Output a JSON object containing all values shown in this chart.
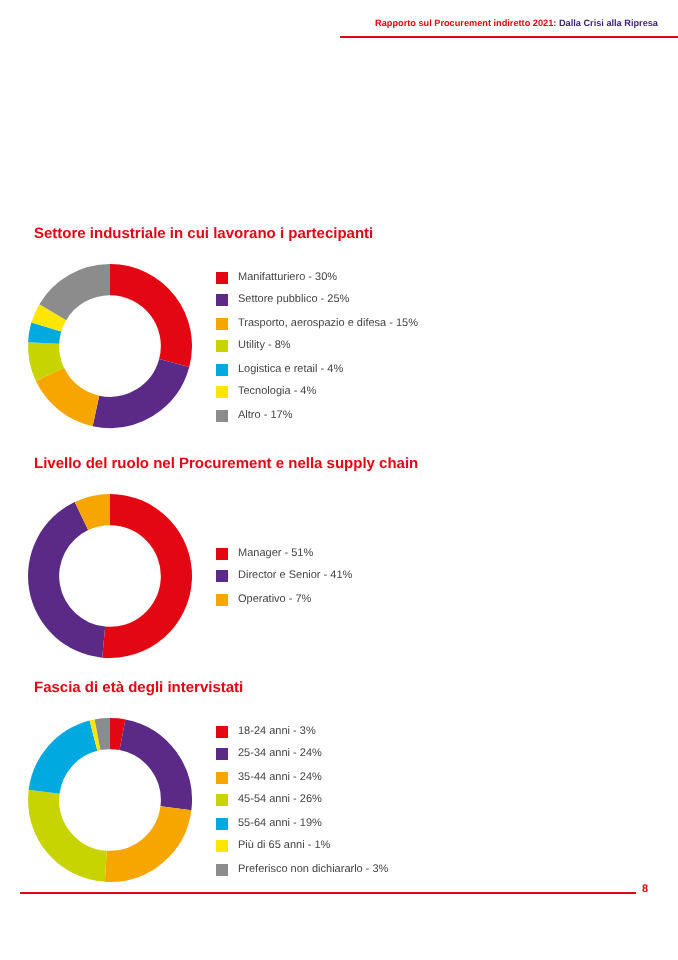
{
  "chart_data": [
    {
      "type": "donut",
      "title": "Settore industriale in cui lavorano i partecipanti",
      "legend": "right",
      "annotations": [
        "Rapporto sul Procurement indiretto 2021:",
        "Dalla Crisi alla Ripresa"
      ],
      "categories": [
        "Manifatturiero",
        "Settore pubblico",
        "Trasporto, aerospazio e difesa",
        "Utility",
        "Logistica e retail",
        "Tecnologia",
        "Altro"
      ],
      "values": [
        30,
        25,
        15,
        8,
        4,
        4,
        17
      ],
      "value_labels": [
        "30%",
        "25%",
        "15%",
        "8%",
        "4%",
        "4%",
        "17%"
      ],
      "colors": [
        "#e30613",
        "#5b2a86",
        "#f7a600",
        "#c8d400",
        "#00a9e0",
        "#ffe600",
        "#8c8c8c"
      ]
    },
    {
      "type": "donut",
      "title": "Livello del ruolo nel Procurement e nella supply chain",
      "legend": "right",
      "categories": [
        "Manager",
        "Director e Senior",
        "Operativo"
      ],
      "values": [
        51,
        41,
        7
      ],
      "value_labels": [
        "51%",
        "41%",
        "7%"
      ],
      "colors": [
        "#e30613",
        "#5b2a86",
        "#f7a600"
      ]
    },
    {
      "type": "donut",
      "title": "Fascia di età degli intervistati",
      "legend": "right",
      "annotations": [
        "8"
      ],
      "categories": [
        "18-24 anni",
        "25-34 anni",
        "35-44 anni",
        "45-54 anni",
        "55-64 anni",
        "Più di 65 anni",
        "Preferisco non dichiararlo"
      ],
      "values": [
        3,
        24,
        24,
        26,
        19,
        1,
        3
      ],
      "value_labels": [
        "3%",
        "24%",
        "24%",
        "26%",
        "19%",
        "1%",
        "3%"
      ],
      "colors": [
        "#e30613",
        "#5b2a86",
        "#f7a600",
        "#c8d400",
        "#00a9e0",
        "#ffe600",
        "#8c8c8c"
      ]
    }
  ]
}
